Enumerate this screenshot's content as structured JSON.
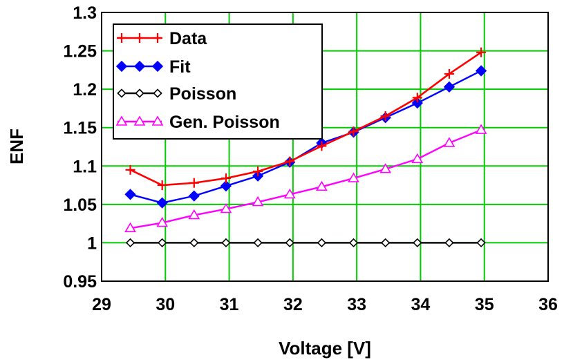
{
  "chart_data": {
    "type": "line",
    "title": "",
    "xlabel": "Voltage [V]",
    "ylabel": "ENF",
    "xlim": [
      29,
      36
    ],
    "ylim": [
      0.95,
      1.3
    ],
    "xticks": [
      29,
      30,
      31,
      32,
      33,
      34,
      35,
      36
    ],
    "xtick_labels": [
      "29",
      "30",
      "31",
      "32",
      "33",
      "34",
      "35",
      "36"
    ],
    "yticks": [
      0.95,
      1,
      1.05,
      1.1,
      1.15,
      1.2,
      1.25,
      1.3
    ],
    "ytick_labels": [
      "0.95",
      "1",
      "1.05",
      "1.1",
      "1.15",
      "1.2",
      "1.25",
      "1.3"
    ],
    "grid": true,
    "legend_position": "top-left",
    "x": [
      29.45,
      29.95,
      30.45,
      30.95,
      31.45,
      31.95,
      32.45,
      32.95,
      33.45,
      33.95,
      34.45,
      34.95
    ],
    "series": [
      {
        "name": "Data",
        "color": "#ff0000",
        "marker": "plus",
        "values": [
          1.095,
          1.075,
          1.078,
          1.084,
          1.093,
          1.106,
          1.126,
          1.145,
          1.165,
          1.189,
          1.22,
          1.248
        ]
      },
      {
        "name": "Fit",
        "color": "#0000ff",
        "marker": "diamond-filled",
        "values": [
          1.063,
          1.052,
          1.061,
          1.074,
          1.087,
          1.105,
          1.13,
          1.144,
          1.163,
          1.182,
          1.203,
          1.224
        ]
      },
      {
        "name": "Poisson",
        "color": "#000000",
        "marker": "diamond-open",
        "values": [
          1.0,
          1.0,
          1.0,
          1.0,
          1.0,
          1.0,
          1.0,
          1.0,
          1.0,
          1.0,
          1.0,
          1.0
        ]
      },
      {
        "name": "Gen. Poisson",
        "color": "#ff00ff",
        "marker": "triangle-open",
        "values": [
          1.019,
          1.026,
          1.036,
          1.044,
          1.053,
          1.063,
          1.073,
          1.084,
          1.096,
          1.109,
          1.13,
          1.147
        ]
      }
    ]
  },
  "colors": {
    "grid": "#00cc00",
    "frame": "#000000",
    "background": "#ffffff"
  }
}
